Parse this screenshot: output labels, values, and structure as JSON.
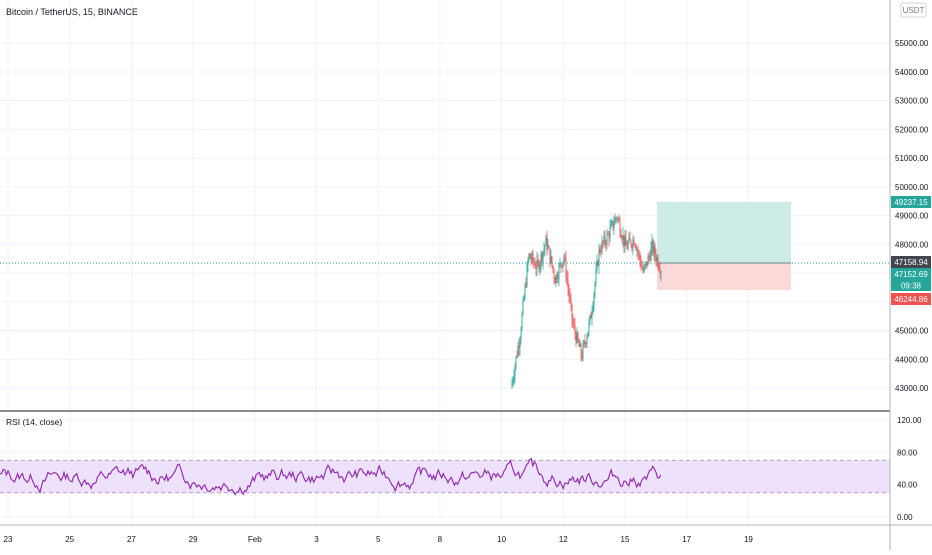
{
  "header": {
    "symbol_title": "Bitcoin / TetherUS, 15, BINANCE",
    "currency_label": "USDT"
  },
  "price_axis": {
    "ticks": [
      "55000.00",
      "54000.00",
      "53000.00",
      "52000.00",
      "51000.00",
      "50000.00",
      "49000.00",
      "48000.00",
      "47000.00",
      "46000.00",
      "45000.00",
      "44000.00",
      "43000.00"
    ]
  },
  "price_badges": {
    "target": "49237.15",
    "last": "47158.94",
    "current": "47152.69",
    "countdown": "09:38",
    "stop": "46244.86"
  },
  "colors": {
    "up": "#26a69a",
    "down": "#ef5350",
    "rsi_line": "#8e24aa",
    "rsi_band": "#ede1fb",
    "profit_zone": "#cdece7",
    "loss_zone": "#fbd9d9"
  },
  "rsi_panel": {
    "label": "RSI (14, close)",
    "ticks": [
      "120.00",
      "80.00",
      "40.00",
      "0.00"
    ]
  },
  "time_axis": {
    "labels": [
      "23",
      "25",
      "27",
      "29",
      "Feb",
      "3",
      "5",
      "8",
      "10",
      "12",
      "15",
      "17",
      "19"
    ]
  },
  "chart_data": {
    "type": "candlestick",
    "symbol": "Bitcoin / TetherUS",
    "interval": "15",
    "exchange": "BINANCE",
    "price_axis_range": [
      42200,
      56500
    ],
    "position": {
      "entry": 47158.94,
      "target": 49237.15,
      "stop": 46244.86
    },
    "current_price": 47152.69,
    "price_path": [
      {
        "date": "Feb 8",
        "price": 43000
      },
      {
        "date": "Feb 8",
        "price": 44800
      },
      {
        "date": "Feb 9",
        "price": 47600
      },
      {
        "date": "Feb 9",
        "price": 47200
      },
      {
        "date": "Feb 9",
        "price": 48100
      },
      {
        "date": "Feb 10",
        "price": 46800
      },
      {
        "date": "Feb 10",
        "price": 47600
      },
      {
        "date": "Feb 10",
        "price": 45200
      },
      {
        "date": "Feb 11",
        "price": 44100
      },
      {
        "date": "Feb 11",
        "price": 45400
      },
      {
        "date": "Feb 11",
        "price": 47800
      },
      {
        "date": "Feb 12",
        "price": 48300
      },
      {
        "date": "Feb 12",
        "price": 49000
      },
      {
        "date": "Feb 12",
        "price": 47900
      },
      {
        "date": "Feb 13",
        "price": 48200
      },
      {
        "date": "Feb 13",
        "price": 47000
      },
      {
        "date": "Feb 13",
        "price": 47900
      },
      {
        "date": "Feb 14",
        "price": 47150
      }
    ],
    "rsi": {
      "period": 14,
      "source": "close",
      "overbought": 70,
      "oversold": 30,
      "axis_range": [
        -10,
        130
      ]
    }
  }
}
